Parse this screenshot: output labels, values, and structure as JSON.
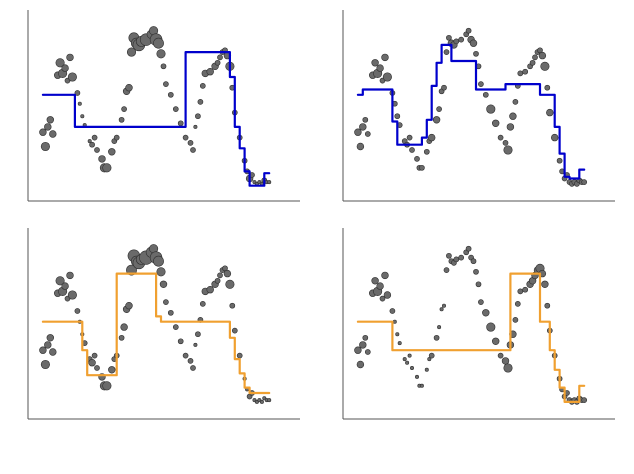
{
  "chart_data": [
    {
      "type": "scatter",
      "panel": "top-left",
      "xlim": [
        0,
        100
      ],
      "ylim": [
        -2.4,
        2.4
      ],
      "grid": false,
      "fit_color": "#0000cc",
      "points": {
        "x": [
          2,
          3,
          4,
          5,
          6,
          8,
          9,
          10,
          11,
          12,
          13,
          14,
          16,
          17,
          18,
          19,
          21,
          22,
          23,
          24,
          26,
          27,
          28,
          30,
          31,
          32,
          34,
          35,
          36,
          37,
          38,
          39,
          40,
          41,
          42,
          44,
          46,
          47,
          48,
          49,
          50,
          51,
          52,
          54,
          56,
          58,
          60,
          62,
          63,
          64,
          65,
          66,
          67,
          68,
          70,
          72,
          73,
          74,
          75,
          76,
          77,
          78,
          79,
          80,
          82,
          84,
          85,
          86,
          87,
          88,
          89,
          90,
          91,
          92,
          93,
          94
        ],
        "y": [
          -0.75,
          -1.15,
          -0.6,
          -0.4,
          -0.8,
          0.85,
          1.2,
          0.9,
          1.05,
          0.7,
          1.35,
          0.8,
          0.35,
          0.05,
          -0.3,
          -0.55,
          -1.0,
          -1.1,
          -0.9,
          -1.25,
          -1.5,
          -1.75,
          -1.75,
          -1.3,
          -1.0,
          -0.9,
          -0.4,
          -0.1,
          0.4,
          0.5,
          1.5,
          1.9,
          1.75,
          1.7,
          1.8,
          1.85,
          2.0,
          2.1,
          1.85,
          1.75,
          1.45,
          1.1,
          0.6,
          0.3,
          -0.1,
          -0.5,
          -0.9,
          -1.05,
          -1.25,
          -0.6,
          -0.3,
          0.1,
          0.55,
          0.9,
          0.95,
          1.1,
          1.2,
          1.35,
          1.5,
          1.55,
          1.4,
          1.1,
          0.5,
          -0.2,
          -0.9,
          -1.55,
          -1.85,
          -2.05,
          -1.95,
          -2.15,
          -2.2,
          -2.15,
          -2.2,
          -2.1,
          -2.15,
          -2.15
        ],
        "size": [
          4,
          5,
          4,
          4,
          4,
          4,
          5,
          5,
          4,
          3,
          4,
          5,
          3,
          2,
          2,
          2,
          2,
          3,
          3,
          3,
          4,
          5,
          5,
          4,
          3,
          3,
          3,
          3,
          4,
          4,
          5,
          6,
          6,
          7,
          6,
          7,
          5,
          5,
          7,
          6,
          5,
          3,
          3,
          3,
          3,
          3,
          3,
          3,
          3,
          2,
          3,
          3,
          3,
          4,
          4,
          4,
          3,
          3,
          3,
          3,
          4,
          5,
          3,
          3,
          3,
          3,
          3,
          4,
          3,
          2,
          2,
          2,
          2,
          3,
          2,
          2
        ]
      },
      "fit": {
        "x": [
          2,
          15,
          15,
          60,
          60,
          78,
          78,
          80,
          80,
          82,
          82,
          84,
          84,
          86,
          86,
          88,
          88,
          92,
          92,
          94
        ],
        "y": [
          0.3,
          0.3,
          -0.6,
          -0.6,
          1.5,
          1.5,
          0.8,
          0.8,
          -0.6,
          -0.6,
          -1.2,
          -1.2,
          -1.85,
          -1.85,
          -2.25,
          -2.25,
          -2.25,
          -2.25,
          -1.9,
          -1.9
        ]
      }
    },
    {
      "type": "scatter",
      "panel": "top-right",
      "xlim": [
        0,
        100
      ],
      "ylim": [
        -2.4,
        2.4
      ],
      "grid": false,
      "fit_color": "#0000cc",
      "points": {
        "x": [
          2,
          3,
          4,
          5,
          6,
          8,
          9,
          10,
          11,
          12,
          13,
          14,
          16,
          17,
          18,
          19,
          21,
          22,
          23,
          24,
          26,
          27,
          28,
          30,
          31,
          32,
          34,
          35,
          36,
          37,
          38,
          39,
          40,
          41,
          42,
          44,
          46,
          47,
          48,
          49,
          50,
          51,
          52,
          54,
          56,
          58,
          60,
          62,
          63,
          64,
          65,
          66,
          67,
          68,
          70,
          72,
          73,
          74,
          75,
          76,
          77,
          78,
          79,
          80,
          82,
          84,
          85,
          86,
          87,
          88,
          89,
          90,
          91,
          92,
          93,
          94
        ],
        "y": [
          -0.75,
          -1.15,
          -0.6,
          -0.4,
          -0.8,
          0.85,
          1.2,
          0.9,
          1.05,
          0.7,
          1.35,
          0.8,
          0.35,
          0.05,
          -0.3,
          -0.55,
          -1.0,
          -1.1,
          -0.9,
          -1.25,
          -1.5,
          -1.75,
          -1.75,
          -1.3,
          -1.0,
          -0.9,
          -0.4,
          -0.1,
          0.4,
          0.5,
          1.5,
          1.9,
          1.75,
          1.7,
          1.8,
          1.85,
          2.0,
          2.1,
          1.85,
          1.75,
          1.45,
          1.1,
          0.6,
          0.3,
          -0.1,
          -0.5,
          -0.9,
          -1.05,
          -1.25,
          -0.6,
          -0.3,
          0.1,
          0.55,
          0.9,
          0.95,
          1.1,
          1.2,
          1.35,
          1.5,
          1.55,
          1.4,
          1.1,
          0.5,
          -0.2,
          -0.9,
          -1.55,
          -1.85,
          -2.05,
          -1.95,
          -2.15,
          -2.2,
          -2.15,
          -2.2,
          -2.1,
          -2.15,
          -2.15
        ],
        "size": [
          4,
          4,
          4,
          3,
          3,
          4,
          4,
          5,
          4,
          3,
          4,
          5,
          3,
          3,
          3,
          3,
          3,
          3,
          3,
          3,
          3,
          3,
          3,
          3,
          3,
          4,
          4,
          3,
          3,
          3,
          3,
          3,
          4,
          4,
          3,
          3,
          3,
          3,
          4,
          4,
          3,
          3,
          3,
          3,
          5,
          4,
          3,
          3,
          5,
          4,
          4,
          3,
          3,
          3,
          3,
          3,
          3,
          3,
          3,
          3,
          4,
          5,
          3,
          4,
          4,
          3,
          3,
          3,
          3,
          3,
          3,
          3,
          3,
          3,
          3,
          3
        ]
      },
      "fit": {
        "x": [
          2,
          4,
          4,
          16,
          16,
          18,
          18,
          28,
          28,
          30,
          30,
          32,
          32,
          34,
          34,
          36,
          36,
          40,
          40,
          50,
          50,
          62,
          62,
          64,
          64,
          76,
          76,
          82,
          82,
          84,
          84,
          86,
          86,
          88,
          88,
          92,
          92,
          94
        ],
        "y": [
          0.3,
          0.3,
          0.45,
          0.45,
          -0.45,
          -0.45,
          -1.1,
          -1.1,
          -0.9,
          -0.9,
          -0.4,
          -0.4,
          0.55,
          0.55,
          1.2,
          1.2,
          1.7,
          1.7,
          1.25,
          1.25,
          0.45,
          0.45,
          0.6,
          0.6,
          0.6,
          0.6,
          0.3,
          0.3,
          -0.6,
          -0.6,
          -1.35,
          -1.35,
          -2.0,
          -2.0,
          -2.05,
          -2.05,
          -1.8,
          -1.8
        ]
      }
    },
    {
      "type": "scatter",
      "panel": "bottom-left",
      "xlim": [
        0,
        100
      ],
      "ylim": [
        -2.4,
        2.4
      ],
      "grid": false,
      "fit_color": "#f0a030",
      "points": {
        "x": [
          2,
          3,
          4,
          5,
          6,
          8,
          9,
          10,
          11,
          12,
          13,
          14,
          16,
          17,
          18,
          19,
          21,
          22,
          23,
          24,
          26,
          27,
          28,
          30,
          31,
          32,
          34,
          35,
          36,
          37,
          38,
          39,
          40,
          41,
          42,
          44,
          46,
          47,
          48,
          49,
          50,
          51,
          52,
          54,
          56,
          58,
          60,
          62,
          63,
          64,
          65,
          66,
          67,
          68,
          70,
          72,
          73,
          74,
          75,
          76,
          77,
          78,
          79,
          80,
          82,
          84,
          85,
          86,
          87,
          88,
          89,
          90,
          91,
          92,
          93,
          94
        ],
        "y": [
          -0.75,
          -1.15,
          -0.6,
          -0.4,
          -0.8,
          0.85,
          1.2,
          0.9,
          1.05,
          0.7,
          1.35,
          0.8,
          0.35,
          0.05,
          -0.3,
          -0.55,
          -1.0,
          -1.1,
          -0.9,
          -1.25,
          -1.5,
          -1.75,
          -1.75,
          -1.3,
          -1.0,
          -0.9,
          -0.4,
          -0.1,
          0.4,
          0.5,
          1.5,
          1.9,
          1.75,
          1.7,
          1.8,
          1.85,
          2.0,
          2.1,
          1.85,
          1.75,
          1.45,
          1.1,
          0.6,
          0.3,
          -0.1,
          -0.5,
          -0.9,
          -1.05,
          -1.25,
          -0.6,
          -0.3,
          0.1,
          0.55,
          0.9,
          0.95,
          1.1,
          1.2,
          1.35,
          1.5,
          1.55,
          1.4,
          1.1,
          0.5,
          -0.2,
          -0.9,
          -1.55,
          -1.85,
          -2.05,
          -1.95,
          -2.15,
          -2.2,
          -2.15,
          -2.2,
          -2.1,
          -2.15,
          -2.15
        ],
        "size": [
          4,
          5,
          4,
          4,
          4,
          4,
          5,
          5,
          4,
          3,
          4,
          5,
          3,
          2,
          2,
          3,
          3,
          4,
          3,
          3,
          4,
          5,
          5,
          4,
          3,
          3,
          3,
          4,
          4,
          4,
          6,
          7,
          6,
          7,
          6,
          8,
          6,
          5,
          7,
          6,
          5,
          4,
          3,
          3,
          3,
          3,
          3,
          3,
          3,
          2,
          3,
          3,
          3,
          4,
          4,
          4,
          3,
          3,
          3,
          3,
          4,
          5,
          3,
          3,
          3,
          2,
          2,
          3,
          3,
          2,
          2,
          2,
          2,
          2,
          2,
          2
        ]
      },
      "fit": {
        "x": [
          2,
          18,
          18,
          20,
          20,
          32,
          32,
          34,
          34,
          48,
          48,
          50,
          50,
          78,
          78,
          80,
          80,
          82,
          82,
          84,
          84,
          86,
          86,
          88,
          88,
          94
        ],
        "y": [
          0.05,
          0.05,
          -0.75,
          -0.75,
          -1.45,
          -1.45,
          1.4,
          1.4,
          1.4,
          1.4,
          0.2,
          0.2,
          0.05,
          0.05,
          -0.4,
          -0.4,
          -1.0,
          -1.0,
          -1.4,
          -1.4,
          -1.8,
          -1.8,
          -1.95,
          -1.95,
          -1.95,
          -1.95
        ]
      }
    },
    {
      "type": "scatter",
      "panel": "bottom-right",
      "xlim": [
        0,
        100
      ],
      "ylim": [
        -2.4,
        2.4
      ],
      "grid": false,
      "fit_color": "#f0a030",
      "points": {
        "x": [
          2,
          3,
          4,
          5,
          6,
          8,
          9,
          10,
          11,
          12,
          13,
          14,
          16,
          17,
          18,
          19,
          21,
          22,
          23,
          24,
          26,
          27,
          28,
          30,
          31,
          32,
          34,
          35,
          36,
          37,
          38,
          39,
          40,
          41,
          42,
          44,
          46,
          47,
          48,
          49,
          50,
          51,
          52,
          54,
          56,
          58,
          60,
          62,
          63,
          64,
          65,
          66,
          67,
          68,
          70,
          72,
          73,
          74,
          75,
          76,
          77,
          78,
          79,
          80,
          82,
          84,
          85,
          86,
          87,
          88,
          89,
          90,
          91,
          92,
          93,
          94
        ],
        "y": [
          -0.75,
          -1.15,
          -0.6,
          -0.4,
          -0.8,
          0.85,
          1.2,
          0.9,
          1.05,
          0.7,
          1.35,
          0.8,
          0.35,
          0.05,
          -0.3,
          -0.55,
          -1.0,
          -1.1,
          -0.9,
          -1.25,
          -1.5,
          -1.75,
          -1.75,
          -1.3,
          -1.0,
          -0.9,
          -0.4,
          -0.1,
          0.4,
          0.5,
          1.5,
          1.9,
          1.75,
          1.7,
          1.8,
          1.85,
          2.0,
          2.1,
          1.85,
          1.75,
          1.45,
          1.1,
          0.6,
          0.3,
          -0.1,
          -0.5,
          -0.9,
          -1.05,
          -1.25,
          -0.6,
          -0.3,
          0.1,
          0.55,
          0.9,
          0.95,
          1.1,
          1.2,
          1.35,
          1.5,
          1.55,
          1.4,
          1.1,
          0.5,
          -0.2,
          -0.9,
          -1.55,
          -1.85,
          -2.05,
          -1.95,
          -2.15,
          -2.2,
          -2.15,
          -2.2,
          -2.1,
          -2.15,
          -2.15
        ],
        "size": [
          4,
          4,
          4,
          3,
          3,
          4,
          4,
          5,
          4,
          3,
          4,
          4,
          3,
          2,
          2,
          2,
          2,
          2,
          2,
          2,
          2,
          2,
          2,
          2,
          2,
          3,
          3,
          2,
          2,
          2,
          3,
          3,
          3,
          3,
          3,
          3,
          3,
          3,
          3,
          3,
          3,
          3,
          3,
          4,
          5,
          4,
          3,
          4,
          5,
          4,
          4,
          3,
          3,
          3,
          3,
          4,
          4,
          4,
          4,
          5,
          4,
          4,
          3,
          3,
          3,
          3,
          3,
          3,
          3,
          3,
          3,
          3,
          3,
          3,
          3,
          3
        ]
      },
      "fit": {
        "x": [
          2,
          16,
          16,
          60,
          60,
          64,
          64,
          76,
          76,
          80,
          80,
          82,
          82,
          84,
          84,
          86,
          86,
          88,
          88,
          92,
          92,
          94
        ],
        "y": [
          0.05,
          0.05,
          -0.75,
          -0.75,
          -0.75,
          -0.75,
          1.4,
          1.4,
          0.05,
          0.05,
          -0.75,
          -0.75,
          -1.3,
          -1.3,
          -1.8,
          -1.8,
          -2.2,
          -2.2,
          -2.2,
          -2.2,
          -1.75,
          -1.75
        ]
      }
    }
  ]
}
